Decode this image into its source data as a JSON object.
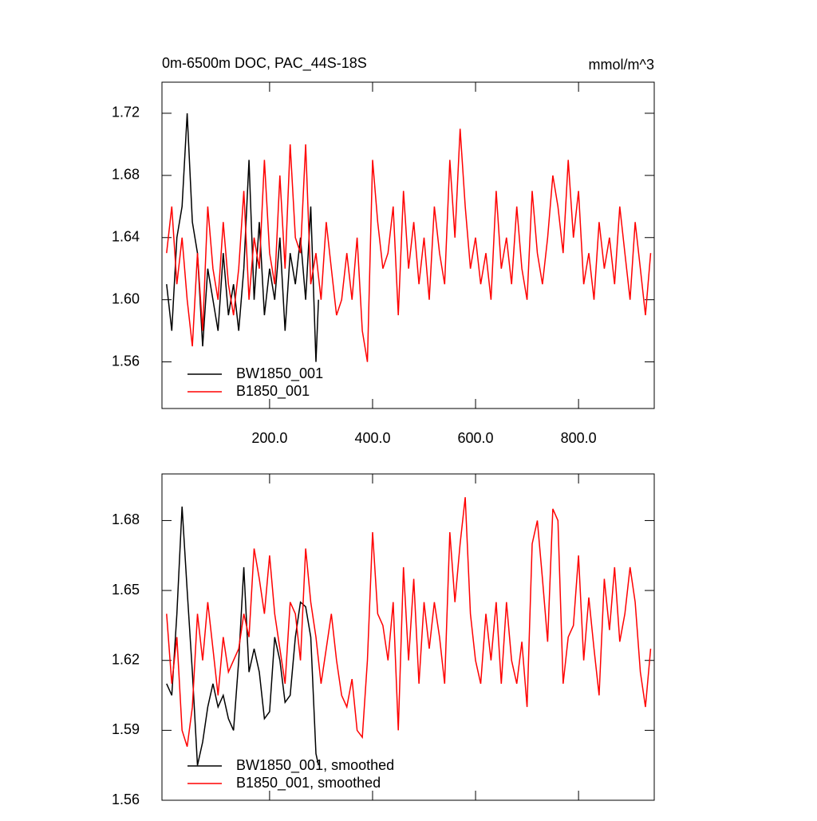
{
  "chart_data": [
    {
      "type": "line",
      "title": "0m-6500m DOC, PAC_44S-18S",
      "units": "mmol/m^3",
      "xlim": [
        -9,
        947
      ],
      "ylim": [
        1.53,
        1.74
      ],
      "xticks": [
        {
          "value": 200,
          "label": "200.0"
        },
        {
          "value": 400,
          "label": "400.0"
        },
        {
          "value": 600,
          "label": "600.0"
        },
        {
          "value": 800,
          "label": "800.0"
        }
      ],
      "yticks": [
        1.56,
        {
          "value": 1.6,
          "label": "1.60"
        },
        1.64,
        1.68,
        1.72
      ],
      "series": [
        {
          "name": "BW1850_001",
          "color": "#000000",
          "x": [
            0,
            10,
            20,
            30,
            40,
            50,
            60,
            70,
            80,
            90,
            100,
            110,
            120,
            130,
            140,
            150,
            160,
            170,
            180,
            190,
            200,
            210,
            220,
            230,
            240,
            250,
            260,
            270,
            280,
            290,
            295
          ],
          "values": [
            1.61,
            1.58,
            1.64,
            1.66,
            1.72,
            1.65,
            1.63,
            1.57,
            1.62,
            1.6,
            1.58,
            1.63,
            1.59,
            1.61,
            1.58,
            1.62,
            1.69,
            1.6,
            1.65,
            1.59,
            1.62,
            1.6,
            1.64,
            1.58,
            1.63,
            1.61,
            1.64,
            1.6,
            1.66,
            1.56,
            1.6
          ]
        },
        {
          "name": "B1850_001",
          "color": "#ff0000",
          "x": [
            0,
            10,
            20,
            30,
            40,
            50,
            60,
            70,
            80,
            90,
            100,
            110,
            120,
            130,
            140,
            150,
            160,
            170,
            180,
            190,
            200,
            210,
            220,
            230,
            240,
            250,
            260,
            270,
            280,
            290,
            300,
            310,
            320,
            330,
            340,
            350,
            360,
            370,
            380,
            390,
            400,
            410,
            420,
            430,
            440,
            450,
            460,
            470,
            480,
            490,
            500,
            510,
            520,
            530,
            540,
            550,
            560,
            570,
            580,
            590,
            600,
            610,
            620,
            630,
            640,
            650,
            660,
            670,
            680,
            690,
            700,
            710,
            720,
            730,
            740,
            750,
            760,
            770,
            780,
            790,
            800,
            810,
            820,
            830,
            840,
            850,
            860,
            870,
            880,
            890,
            900,
            910,
            920,
            930,
            940
          ],
          "values": [
            1.63,
            1.66,
            1.61,
            1.64,
            1.6,
            1.57,
            1.63,
            1.58,
            1.66,
            1.62,
            1.6,
            1.65,
            1.61,
            1.59,
            1.62,
            1.67,
            1.6,
            1.64,
            1.62,
            1.69,
            1.63,
            1.61,
            1.68,
            1.62,
            1.7,
            1.64,
            1.63,
            1.7,
            1.61,
            1.63,
            1.6,
            1.65,
            1.62,
            1.59,
            1.6,
            1.63,
            1.6,
            1.64,
            1.58,
            1.56,
            1.69,
            1.65,
            1.62,
            1.63,
            1.66,
            1.59,
            1.67,
            1.62,
            1.65,
            1.61,
            1.64,
            1.6,
            1.66,
            1.63,
            1.61,
            1.69,
            1.64,
            1.71,
            1.66,
            1.62,
            1.64,
            1.61,
            1.63,
            1.6,
            1.67,
            1.62,
            1.64,
            1.61,
            1.66,
            1.62,
            1.6,
            1.67,
            1.63,
            1.61,
            1.64,
            1.68,
            1.66,
            1.63,
            1.69,
            1.64,
            1.67,
            1.61,
            1.63,
            1.6,
            1.65,
            1.62,
            1.64,
            1.61,
            1.66,
            1.63,
            1.6,
            1.65,
            1.62,
            1.59,
            1.63
          ]
        }
      ]
    },
    {
      "type": "line",
      "xlim": [
        -9,
        947
      ],
      "ylim": [
        1.56,
        1.7
      ],
      "yticks": [
        1.56,
        1.59,
        1.62,
        1.65,
        1.68
      ],
      "series": [
        {
          "name": "BW1850_001, smoothed",
          "color": "#000000",
          "x": [
            0,
            10,
            20,
            30,
            40,
            50,
            60,
            70,
            80,
            90,
            100,
            110,
            120,
            130,
            140,
            150,
            160,
            170,
            180,
            190,
            200,
            210,
            220,
            230,
            240,
            250,
            260,
            270,
            280,
            290,
            295
          ],
          "values": [
            1.61,
            1.605,
            1.64,
            1.686,
            1.65,
            1.615,
            1.575,
            1.585,
            1.6,
            1.61,
            1.6,
            1.605,
            1.595,
            1.59,
            1.62,
            1.66,
            1.615,
            1.625,
            1.615,
            1.595,
            1.598,
            1.63,
            1.62,
            1.602,
            1.605,
            1.63,
            1.645,
            1.643,
            1.63,
            1.58,
            1.575
          ]
        },
        {
          "name": "B1850_001, smoothed",
          "color": "#ff0000",
          "x": [
            0,
            10,
            20,
            30,
            40,
            50,
            60,
            70,
            80,
            90,
            100,
            110,
            120,
            130,
            140,
            150,
            160,
            170,
            180,
            190,
            200,
            210,
            220,
            230,
            240,
            250,
            260,
            270,
            280,
            290,
            300,
            310,
            320,
            330,
            340,
            350,
            360,
            370,
            380,
            390,
            400,
            410,
            420,
            430,
            440,
            450,
            460,
            470,
            480,
            490,
            500,
            510,
            520,
            530,
            540,
            550,
            560,
            570,
            580,
            590,
            600,
            610,
            620,
            630,
            640,
            650,
            660,
            670,
            680,
            690,
            700,
            710,
            720,
            730,
            740,
            750,
            760,
            770,
            780,
            790,
            800,
            810,
            820,
            830,
            840,
            850,
            860,
            870,
            880,
            890,
            900,
            910,
            920,
            930,
            940
          ],
          "values": [
            1.64,
            1.61,
            1.63,
            1.59,
            1.583,
            1.6,
            1.64,
            1.62,
            1.645,
            1.625,
            1.605,
            1.63,
            1.615,
            1.62,
            1.625,
            1.64,
            1.63,
            1.668,
            1.655,
            1.64,
            1.665,
            1.64,
            1.625,
            1.61,
            1.645,
            1.64,
            1.62,
            1.668,
            1.645,
            1.63,
            1.61,
            1.625,
            1.64,
            1.62,
            1.605,
            1.6,
            1.612,
            1.59,
            1.587,
            1.62,
            1.675,
            1.64,
            1.635,
            1.62,
            1.645,
            1.59,
            1.66,
            1.62,
            1.655,
            1.61,
            1.645,
            1.625,
            1.645,
            1.63,
            1.61,
            1.675,
            1.645,
            1.67,
            1.69,
            1.64,
            1.62,
            1.61,
            1.64,
            1.62,
            1.645,
            1.61,
            1.645,
            1.62,
            1.61,
            1.628,
            1.6,
            1.67,
            1.68,
            1.655,
            1.628,
            1.685,
            1.68,
            1.61,
            1.63,
            1.635,
            1.665,
            1.62,
            1.647,
            1.625,
            1.605,
            1.655,
            1.633,
            1.66,
            1.628,
            1.64,
            1.66,
            1.645,
            1.615,
            1.6,
            1.625
          ]
        }
      ]
    }
  ]
}
